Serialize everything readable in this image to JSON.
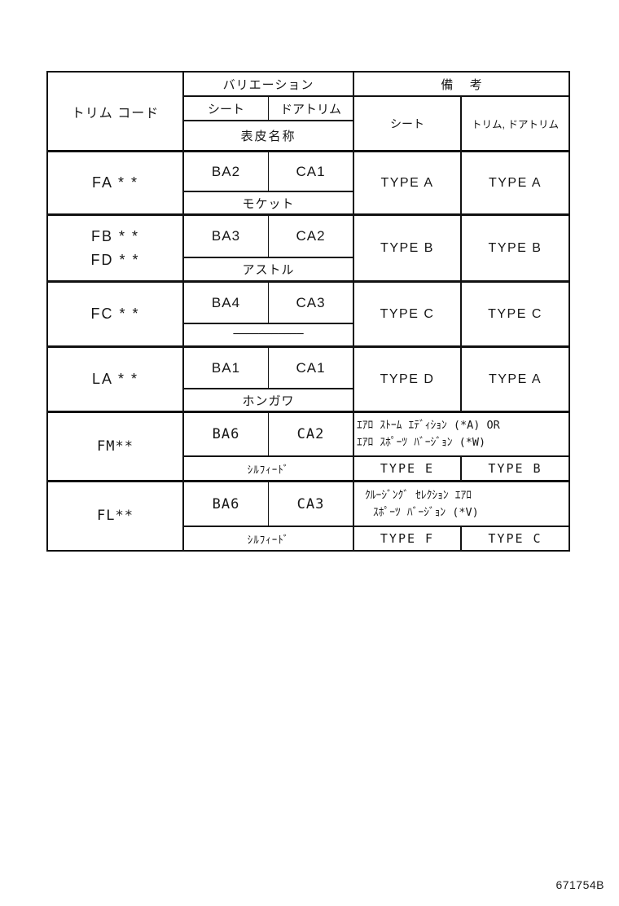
{
  "page": {
    "figure_code": "671754B"
  },
  "table": {
    "header": {
      "trim_code": "トリム コード",
      "variation": "バリエーション",
      "seat": "シート",
      "door_trim": "ドアトリム",
      "surface_name": "表皮名称",
      "remarks": "備 考",
      "remarks_seat": "シート",
      "remarks_trim": "トリム, ドアトリム"
    },
    "rows": [
      {
        "code": "FA * *",
        "seat": "BA2",
        "door_trim": "CA1",
        "surface_name": "モケット",
        "type_seat": "TYPE A",
        "type_trim": "TYPE A"
      },
      {
        "code": "FB * *",
        "code_line2": "FD * *",
        "seat": "BA3",
        "door_trim": "CA2",
        "surface_name": "アストル",
        "type_seat": "TYPE B",
        "type_trim": "TYPE B"
      },
      {
        "code": "FC * *",
        "seat": "BA4",
        "door_trim": "CA3",
        "surface_name": "───────────",
        "type_seat": "TYPE C",
        "type_trim": "TYPE C"
      },
      {
        "code": "LA * *",
        "seat": "BA1",
        "door_trim": "CA1",
        "surface_name": "ホンガワ",
        "type_seat": "TYPE D",
        "type_trim": "TYPE A"
      },
      {
        "code": "FM**",
        "seat": "BA6",
        "door_trim": "CA2",
        "surface_name": "ｼﾙﾌｨｰﾄﾞ",
        "note_line1": "ｴｱﾛ ｽﾄｰﾑ ｴﾃﾞｨｼｮﾝ (*A)  OR",
        "note_line2": "ｴｱﾛ ｽﾎﾟｰﾂ ﾊﾞｰｼﾞｮﾝ (*W)",
        "type_seat": "TYPE E",
        "type_trim": "TYPE B"
      },
      {
        "code": "FL**",
        "seat": "BA6",
        "door_trim": "CA3",
        "surface_name": "ｼﾙﾌｨｰﾄﾞ",
        "note_line1": "ｸﾙｰｼﾞﾝｸﾞ  ｾﾚｸｼｮﾝ  ｴｱﾛ",
        "note_line2": "ｽﾎﾟｰﾂ ﾊﾞｰｼﾞｮﾝ (*V)",
        "type_seat": "TYPE F",
        "type_trim": "TYPE C"
      }
    ]
  }
}
